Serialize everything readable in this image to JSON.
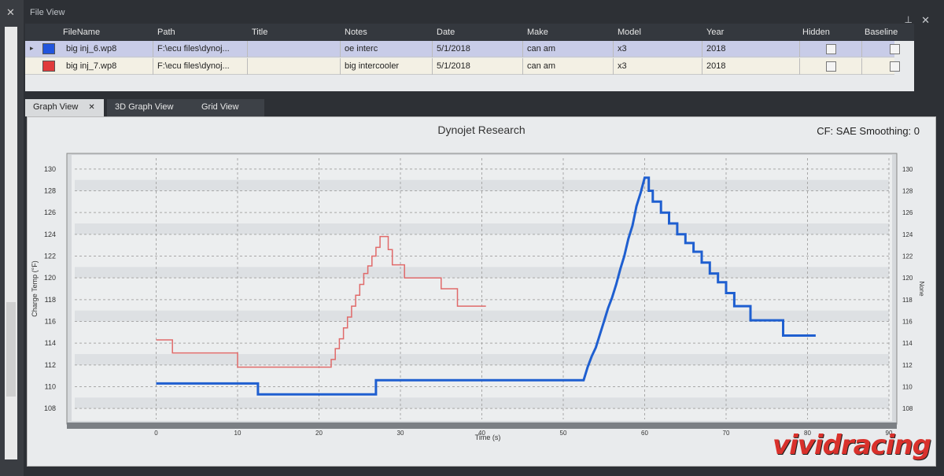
{
  "window": {
    "fileview_title": "File View",
    "pin_icon": "pin-icon",
    "close_icon": "close-icon"
  },
  "file_table": {
    "columns": [
      "FileName",
      "Path",
      "Title",
      "Notes",
      "Date",
      "Make",
      "Model",
      "Year",
      "Hidden",
      "Baseline"
    ],
    "rows": [
      {
        "color": "#2255dd",
        "filename": "big inj_6.wp8",
        "path": "F:\\ecu files\\dynoj...",
        "title": "",
        "notes": "oe interc",
        "date": "5/1/2018",
        "make": "can am",
        "model": "x3",
        "year": "2018"
      },
      {
        "color": "#e03a3a",
        "filename": "big inj_7.wp8",
        "path": "F:\\ecu files\\dynoj...",
        "title": "",
        "notes": "big intercooler",
        "date": "5/1/2018",
        "make": "can am",
        "model": "x3",
        "year": "2018"
      }
    ]
  },
  "tabs": [
    {
      "label": "Graph View",
      "active": true
    },
    {
      "label": "3D Graph View",
      "active": false
    },
    {
      "label": "Grid View",
      "active": false
    }
  ],
  "graph": {
    "title": "Dynojet Research",
    "cf_text": "CF: SAE Smoothing: 0"
  },
  "chart_data": {
    "type": "line",
    "xlabel": "Time (s)",
    "ylabel": "Charge Temp (°F)",
    "ylabel_right": "None",
    "xlim": [
      -10,
      90
    ],
    "ylim": [
      107,
      131
    ],
    "x_ticks": [
      0,
      10,
      20,
      30,
      40,
      50,
      60,
      70,
      80,
      90
    ],
    "y_ticks": [
      108,
      110,
      112,
      114,
      116,
      118,
      120,
      122,
      124,
      126,
      128,
      130
    ],
    "grid": true,
    "series": [
      {
        "color": "#e06a6a",
        "points": [
          [
            0,
            114.3
          ],
          [
            2,
            114.3
          ],
          [
            2,
            113.1
          ],
          [
            10,
            113.1
          ],
          [
            10,
            111.8
          ],
          [
            21.5,
            111.8
          ],
          [
            21.5,
            112.5
          ],
          [
            22,
            112.5
          ],
          [
            22,
            113.5
          ],
          [
            22.5,
            113.5
          ],
          [
            22.5,
            114.4
          ],
          [
            23,
            114.4
          ],
          [
            23,
            115.4
          ],
          [
            23.5,
            115.4
          ],
          [
            23.5,
            116.4
          ],
          [
            24,
            116.4
          ],
          [
            24,
            117.4
          ],
          [
            24.5,
            117.4
          ],
          [
            24.5,
            118.4
          ],
          [
            25,
            118.4
          ],
          [
            25,
            119.4
          ],
          [
            25.5,
            119.4
          ],
          [
            25.5,
            120.4
          ],
          [
            26,
            120.4
          ],
          [
            26,
            121.1
          ],
          [
            26.5,
            121.1
          ],
          [
            26.5,
            122.0
          ],
          [
            27,
            122.0
          ],
          [
            27,
            122.8
          ],
          [
            27.5,
            122.8
          ],
          [
            27.5,
            123.8
          ],
          [
            28.5,
            123.8
          ],
          [
            28.5,
            122.6
          ],
          [
            29,
            122.6
          ],
          [
            29,
            121.2
          ],
          [
            30.5,
            121.2
          ],
          [
            30.5,
            120.0
          ],
          [
            32,
            120.0
          ],
          [
            32,
            120.0
          ],
          [
            35,
            120.0
          ],
          [
            35,
            119.0
          ],
          [
            37,
            119.0
          ],
          [
            37,
            117.4
          ],
          [
            40.5,
            117.4
          ]
        ]
      },
      {
        "color": "#1f5fd0",
        "points": [
          [
            0,
            110.3
          ],
          [
            12.5,
            110.3
          ],
          [
            12.5,
            109.3
          ],
          [
            27,
            109.3
          ],
          [
            27,
            110.6
          ],
          [
            52.5,
            110.6
          ],
          [
            53,
            111.8
          ],
          [
            53.5,
            112.8
          ],
          [
            54,
            113.6
          ],
          [
            54.5,
            114.8
          ],
          [
            55,
            116.0
          ],
          [
            55.5,
            117.2
          ],
          [
            56,
            118.2
          ],
          [
            56.5,
            119.4
          ],
          [
            57,
            120.8
          ],
          [
            57.5,
            122.0
          ],
          [
            58,
            123.6
          ],
          [
            58.5,
            124.8
          ],
          [
            59,
            126.6
          ],
          [
            59.5,
            127.8
          ],
          [
            60,
            129.2
          ],
          [
            60.5,
            129.2
          ],
          [
            60.5,
            128.0
          ],
          [
            61,
            128.0
          ],
          [
            61,
            127.0
          ],
          [
            62,
            127.0
          ],
          [
            62,
            126.0
          ],
          [
            63,
            126.0
          ],
          [
            63,
            125.0
          ],
          [
            64,
            125.0
          ],
          [
            64,
            124.0
          ],
          [
            65,
            124.0
          ],
          [
            65,
            123.2
          ],
          [
            66,
            123.2
          ],
          [
            66,
            122.4
          ],
          [
            67,
            122.4
          ],
          [
            67,
            121.4
          ],
          [
            68,
            121.4
          ],
          [
            68,
            120.4
          ],
          [
            69,
            120.4
          ],
          [
            69,
            119.6
          ],
          [
            70,
            119.6
          ],
          [
            70,
            118.6
          ],
          [
            71,
            118.6
          ],
          [
            71,
            117.4
          ],
          [
            73,
            117.4
          ],
          [
            73,
            116.1
          ],
          [
            77,
            116.1
          ],
          [
            77,
            114.7
          ],
          [
            81,
            114.7
          ]
        ]
      }
    ]
  },
  "watermark": "vividracing"
}
